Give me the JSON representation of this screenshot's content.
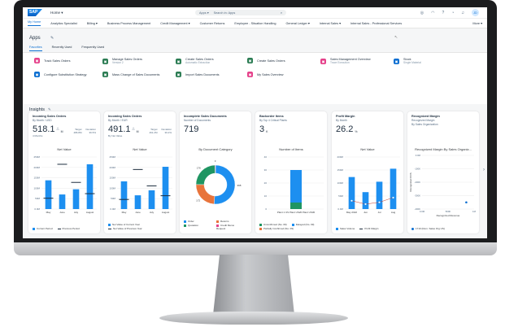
{
  "shell": {
    "logo": "SAP",
    "home": "Home ▾",
    "search_scope": "Apps ▾",
    "search_placeholder": "Search in: Apps",
    "avatar": "JD"
  },
  "nav": {
    "items": [
      "My Home",
      "Analytics Specialist",
      "Billing ▾",
      "Business Process Management",
      "Credit Management ▾",
      "Customer Returns",
      "Employee - Situation Handling",
      "General Ledger ▾",
      "Internal Sales ▾",
      "Internal Sales - Professional Services"
    ],
    "more": "More ▾"
  },
  "apps": {
    "title": "Apps",
    "tabs": [
      "Favorites",
      "Recently Used",
      "Frequently Used"
    ],
    "tiles": [
      {
        "label": "Track Sales Orders",
        "sub": "",
        "color": "#e5408a"
      },
      {
        "label": "Manage Sales Orders",
        "sub": "Version 2",
        "color": "#2b7c53"
      },
      {
        "label": "Create Sales Orders",
        "sub": "Automatic Extraction",
        "color": "#2b7c53"
      },
      {
        "label": "Create Sales Orders",
        "sub": "",
        "color": "#2b7c53"
      },
      {
        "label": "Sales Management Overview",
        "sub": "Trace Execution",
        "color": "#e5408a"
      },
      {
        "label": "Stock",
        "sub": "Single Material",
        "color": "#0a6ed1"
      },
      {
        "label": "Configure Substitution Strategy",
        "sub": "",
        "color": "#0a6ed1"
      },
      {
        "label": "Mass Change of Sales Documents",
        "sub": "",
        "color": "#2b7c53"
      },
      {
        "label": "Import Sales Documents",
        "sub": "",
        "color": "#2b7c53"
      },
      {
        "label": "My Sales Overview",
        "sub": "",
        "color": "#e5408a"
      }
    ]
  },
  "insights": {
    "title": "Insights"
  },
  "cards": [
    {
      "title": "Incoming Sales Orders",
      "subtitle": "By Month / USD",
      "kpi": "518.1",
      "unit": "M",
      "target_label": "Target",
      "target": "486.8M",
      "deviation_label": "Deviation",
      "deviation": "36.5%",
      "note": "4 Months"
    },
    {
      "title": "Incoming Sales Orders",
      "subtitle": "By Month / EUR",
      "kpi": "491.1",
      "unit": "M",
      "target_label": "Target",
      "target": "461.2M",
      "deviation_label": "Deviation",
      "deviation": "39.2%",
      "note": "By Net Value"
    },
    {
      "title": "Incomplete Sales Documents",
      "subtitle": "Number of Documents",
      "kpi": "719"
    },
    {
      "title": "Backorder Items",
      "subtitle": "By Top 4 Critical Plants",
      "kpi": "3",
      "unit": "K"
    },
    {
      "title": "Profit Margin",
      "subtitle": "By Month",
      "kpi": "26.2",
      "unit": "%"
    },
    {
      "title": "Recognized Margin",
      "subtitle": "Recognized Margin",
      "subtitle2": "By Sales Organization"
    }
  ],
  "chart_data": [
    {
      "type": "bar",
      "title": "Net Value",
      "categories": [
        "May",
        "June",
        "July",
        "August"
      ],
      "yticks": [
        "0.0M",
        "50M",
        "100M",
        "150M",
        "200M",
        "250M"
      ],
      "ylim": [
        0,
        250
      ],
      "series": [
        {
          "name": "Current Period",
          "values": [
            138,
            70,
            95,
            215
          ],
          "color": "#1d8ff0"
        },
        {
          "name": "Previous Period",
          "values": [
            52,
            215,
            128,
            74
          ],
          "style": "marker"
        }
      ]
    },
    {
      "type": "bar",
      "title": "Net Value",
      "categories": [
        "May",
        "June",
        "July",
        "August"
      ],
      "yticks": [
        "0.0M",
        "50M",
        "100M",
        "150M",
        "200M",
        "250M"
      ],
      "ylim": [
        0,
        250
      ],
      "series": [
        {
          "name": "Net Value of Current Year",
          "values": [
            133,
            66,
            90,
            203
          ],
          "color": "#1d8ff0"
        },
        {
          "name": "Net Value of Previous Year",
          "values": [
            46,
            190,
            111,
            64
          ],
          "style": "marker"
        }
      ]
    },
    {
      "type": "pie",
      "title": "By Document Category",
      "categories": [
        "Order",
        "Returns",
        "Quotation",
        "Credit Memo Request"
      ],
      "values": [
        368,
        172,
        176,
        3
      ],
      "colors": [
        "#1d8ff0",
        "#e8743b",
        "#1f9562",
        "#e5408a"
      ]
    },
    {
      "type": "bar",
      "title": "Number of Items",
      "categories": [
        "Plant 1 US Plant US20 Plant US30"
      ],
      "yticks": [
        "0",
        "10",
        "20",
        "30",
        "40"
      ],
      "ylim": [
        0,
        40
      ],
      "stacked": true,
      "series": [
        {
          "name": "Unconfirmed (No. 09)",
          "values": [
            5
          ],
          "color": "#1f9562"
        },
        {
          "name": "Delayed (No. 09)",
          "values": [
            25
          ],
          "color": "#1d8ff0"
        },
        {
          "name": "Partially Confirmed (No. 09)",
          "values": [
            0
          ],
          "color": "#e8743b"
        }
      ]
    },
    {
      "type": "bar",
      "title": "Net Value",
      "categories": [
        "May 2022",
        "Jun",
        "Jul",
        "Aug"
      ],
      "yticks": [
        "0.0M",
        "50M",
        "100M",
        "150M",
        "200M"
      ],
      "ylim": [
        0,
        200
      ],
      "series": [
        {
          "name": "Sales Volume",
          "values": [
            123,
            65,
            105,
            155
          ],
          "color": "#1d8ff0"
        },
        {
          "name": "Profit Margin",
          "values": [
            32,
            19,
            26,
            44
          ],
          "style": "line"
        }
      ]
    },
    {
      "type": "scatter",
      "title": "Recognized Margin By Sales Organiz...",
      "xlabel": "Recognized Revenue",
      "ylabel": "Recognized COS",
      "xticks": [
        "0.0M",
        "500K",
        "1M"
      ],
      "yticks": [
        "-400K",
        "-300K",
        "-200K",
        "-100K",
        "0.0M"
      ],
      "xlim": [
        0,
        1000
      ],
      "ylim": [
        -400,
        0
      ],
      "series": [
        {
          "name": "1710 (Dom. Sales Org US)",
          "points": [
            [
              850,
              -350
            ]
          ],
          "color": "#0a6ed1"
        }
      ]
    }
  ]
}
